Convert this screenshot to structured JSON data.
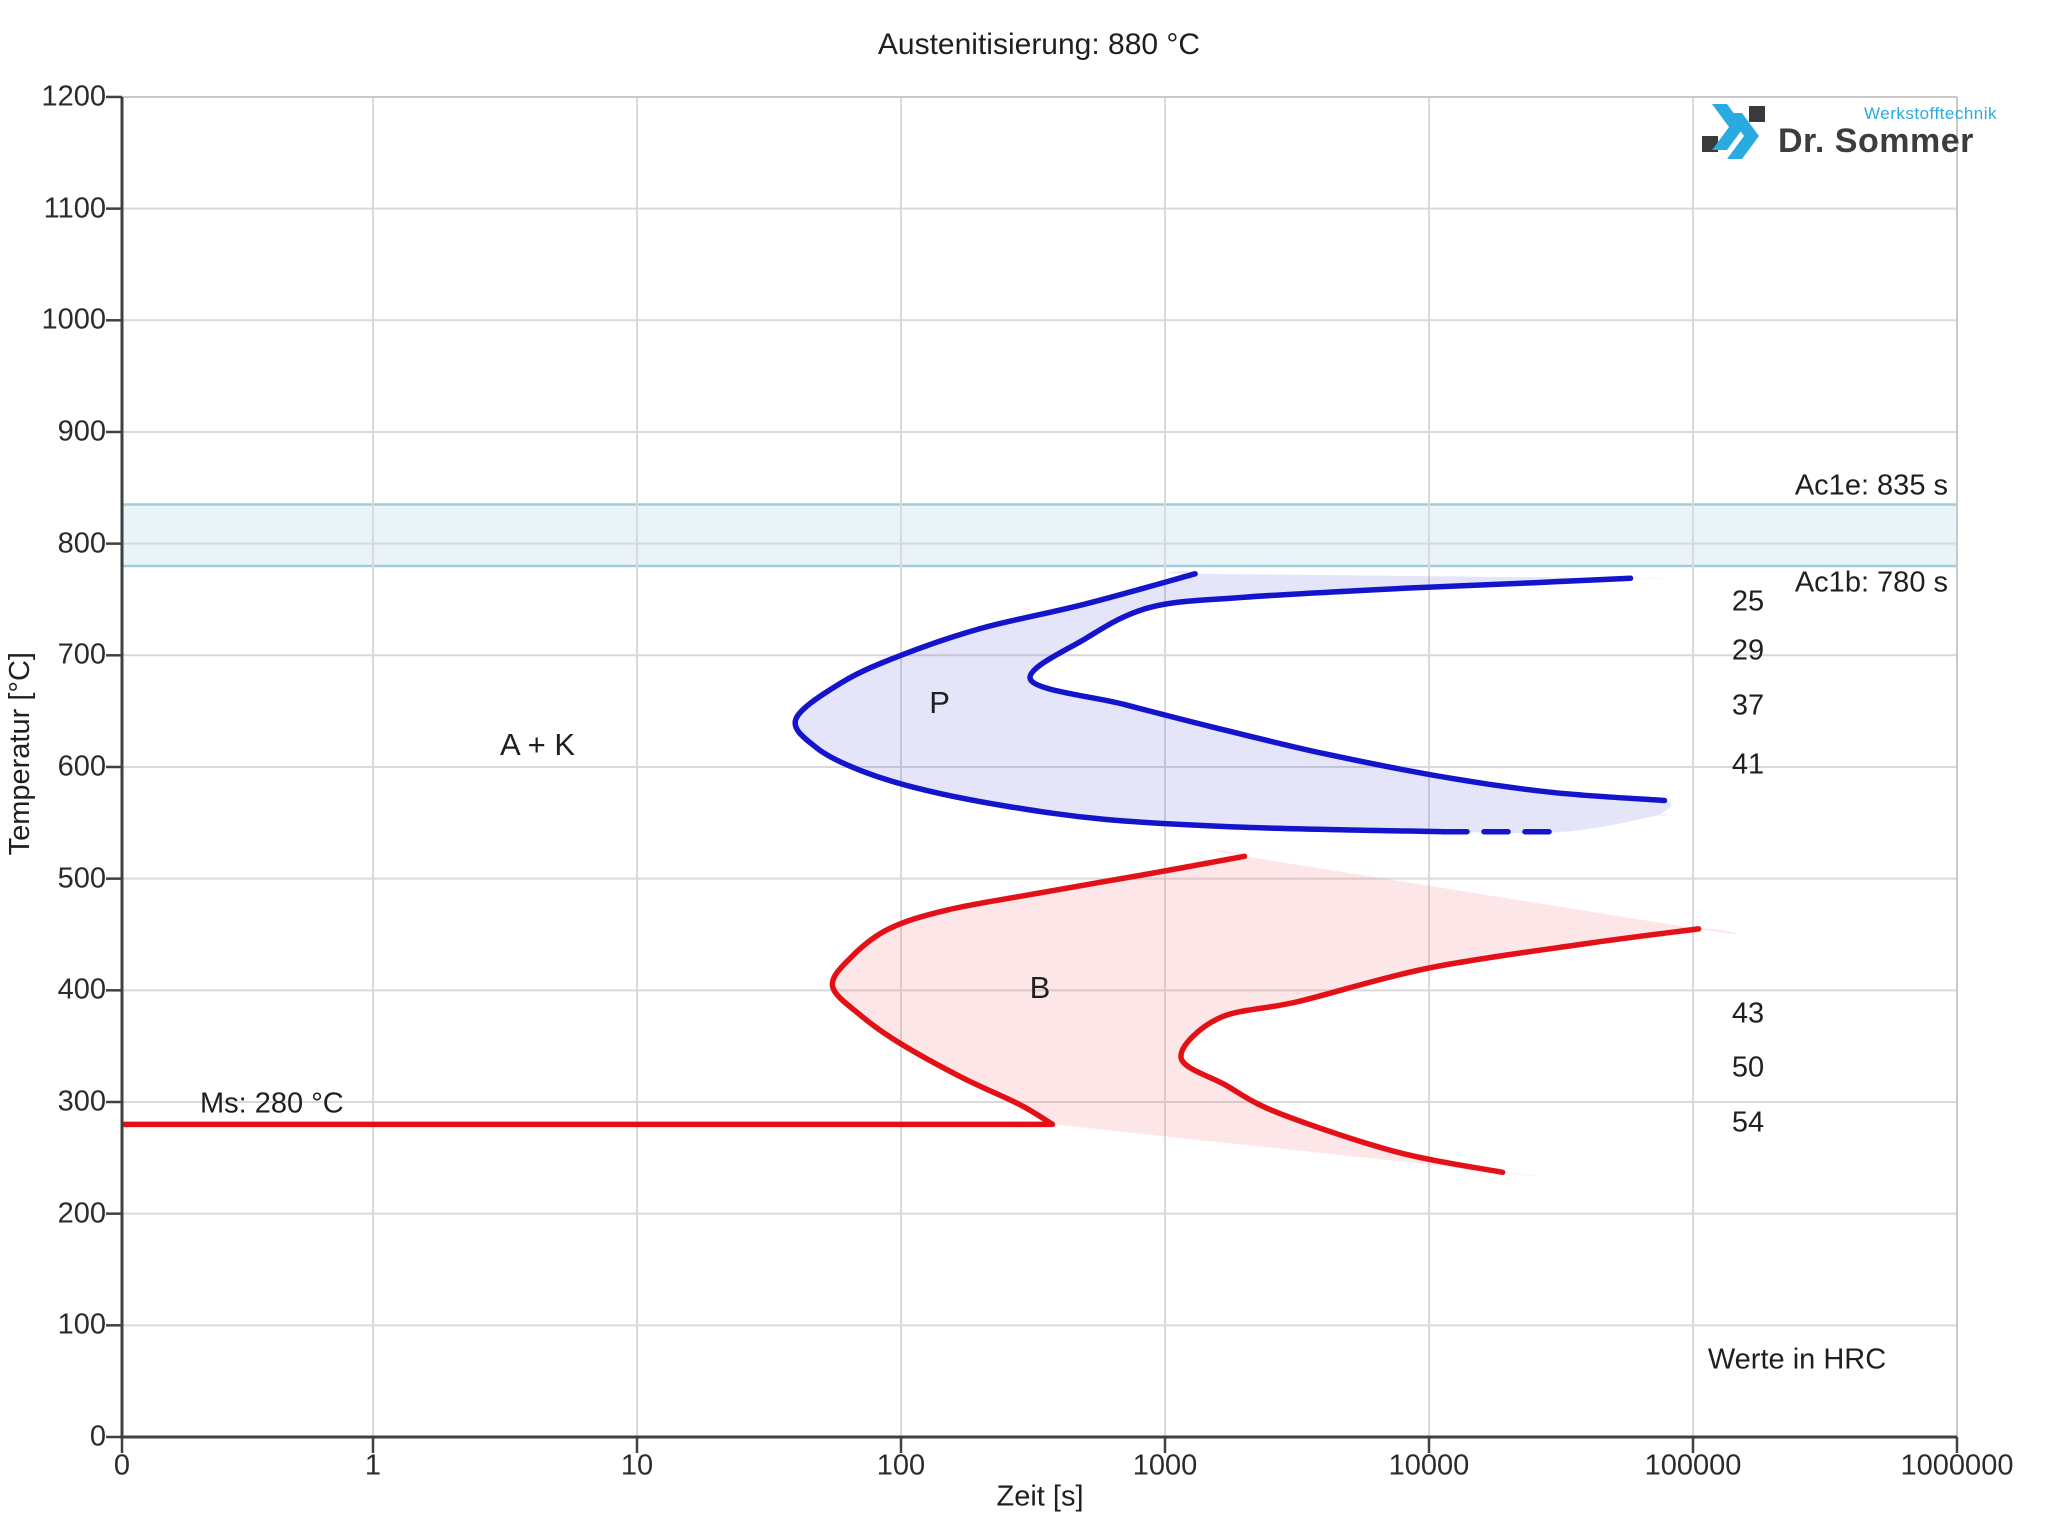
{
  "title": "Austenitisierung: 880 °C",
  "logo": {
    "brand": "Dr. Sommer",
    "sub": "Werkstofftechnik"
  },
  "chart_data": {
    "type": "line",
    "title": "Austenitisierung: 880 °C",
    "xlabel": "Zeit [s]",
    "ylabel": "Temperatur [°C]",
    "x_scale": "log",
    "x_ticks": [
      0,
      1,
      10,
      100,
      1000,
      10000,
      100000,
      1000000
    ],
    "y_ticks": [
      0,
      100,
      200,
      300,
      400,
      500,
      600,
      700,
      800,
      900,
      1000,
      1100,
      1200
    ],
    "ylim": [
      0,
      1200
    ],
    "grid": true,
    "colors": {
      "pearlite_line": "#1414cd",
      "pearlite_fill": "rgba(80,80,220,0.15)",
      "bainite_line": "#e31117",
      "bainite_fill": "rgba(240,100,110,0.16)",
      "band_fill": "#e9f4f8",
      "band_border": "#a3ccda",
      "grid": "#d9d9d9",
      "axis": "#404040"
    },
    "band": {
      "T_top": 835,
      "T_bottom": 780,
      "label_top": "Ac1e: 835 s",
      "label_bottom": "Ac1b: 780 s"
    },
    "ms_line": {
      "label": "Ms: 280 °C",
      "T": 280,
      "t_start": 0,
      "t_end": 375
    },
    "series": [
      {
        "name": "pearlite-outer",
        "color": "#1414cd",
        "dashed": false,
        "points": [
          [
            1300,
            773
          ],
          [
            500,
            746
          ],
          [
            200,
            724
          ],
          [
            100,
            700
          ],
          [
            60,
            676
          ],
          [
            40,
            643
          ],
          [
            48,
            617
          ],
          [
            70,
            597
          ],
          [
            120,
            580
          ],
          [
            250,
            565
          ],
          [
            600,
            553
          ],
          [
            2000,
            546
          ],
          [
            11300,
            542
          ]
        ]
      },
      {
        "name": "pearlite-outer-dashed",
        "color": "#1414cd",
        "dashed": true,
        "points": [
          [
            11300,
            542
          ],
          [
            32700,
            542
          ]
        ]
      },
      {
        "name": "pearlite-inner",
        "color": "#1414cd",
        "dashed": false,
        "points": [
          [
            58000,
            769
          ],
          [
            25000,
            765
          ],
          [
            8000,
            760
          ],
          [
            2000,
            752
          ],
          [
            880,
            743
          ],
          [
            500,
            715
          ],
          [
            310,
            678
          ],
          [
            700,
            656
          ],
          [
            1500,
            636
          ],
          [
            4000,
            612
          ],
          [
            12000,
            590
          ],
          [
            30000,
            577
          ],
          [
            78000,
            570
          ]
        ]
      },
      {
        "name": "bainite-outer",
        "color": "#e31117",
        "dashed": false,
        "points": [
          [
            2000,
            520
          ],
          [
            900,
            505
          ],
          [
            350,
            488
          ],
          [
            150,
            472
          ],
          [
            90,
            455
          ],
          [
            65,
            430
          ],
          [
            55,
            404
          ],
          [
            70,
            378
          ],
          [
            100,
            352
          ],
          [
            170,
            322
          ],
          [
            280,
            298
          ],
          [
            375,
            280
          ]
        ]
      },
      {
        "name": "bainite-inner",
        "color": "#e31117",
        "dashed": false,
        "points": [
          [
            105000,
            455
          ],
          [
            40000,
            442
          ],
          [
            10000,
            420
          ],
          [
            3200,
            390
          ],
          [
            1600,
            375
          ],
          [
            1150,
            340
          ],
          [
            1700,
            315
          ],
          [
            2700,
            290
          ],
          [
            7600,
            255
          ],
          [
            19000,
            237
          ]
        ]
      }
    ],
    "fill_extra_points": {
      "pearlite_taper": [
        [
          32700,
          542
        ],
        [
          75000,
          557
        ]
      ]
    },
    "region_labels": [
      {
        "text": "A + K",
        "t": 4.2,
        "T": 620
      },
      {
        "text": "P",
        "t": 140,
        "T": 657
      },
      {
        "text": "B",
        "t": 336,
        "T": 402
      }
    ],
    "hardness_values": [
      {
        "value": "25",
        "T": 748
      },
      {
        "value": "29",
        "T": 704
      },
      {
        "value": "37",
        "T": 655
      },
      {
        "value": "41",
        "T": 602
      },
      {
        "value": "43",
        "T": 379
      },
      {
        "value": "50",
        "T": 330
      },
      {
        "value": "54",
        "T": 281
      }
    ],
    "hardness_note": "Werte in HRC"
  }
}
